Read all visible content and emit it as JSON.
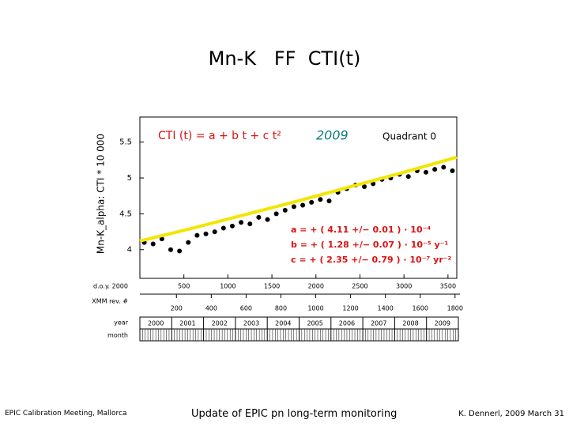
{
  "title": "Mn-K   FF  CTI(t)",
  "footer": {
    "left": "EPIC Calibration Meeting, Mallorca",
    "center": "Update of EPIC pn long-term monitoring",
    "right": "K. Dennerl, 2009 March 31"
  },
  "chart_data": {
    "type": "scatter",
    "y_label": "Mn-K_alpha: CTI * 10 000",
    "x_label": "d.o.y. 2000",
    "x2_label": "XMM rev. #",
    "year_label": "year",
    "month_label": "month",
    "formula": "CTI (t)  =  a + b t + c t²",
    "year_tag": "2009",
    "quadrant": "Quadrant 0",
    "params": [
      "a  =  + ( 4.11 +/−  0.01 ) · 10⁻⁴",
      "b  =  + ( 1.28 +/− 0.07 ) · 10⁻⁵  y⁻¹",
      "c  =  + ( 2.35 +/−  0.79 ) · 10⁻⁷  yr⁻²"
    ],
    "xlim": [
      0,
      3600
    ],
    "ylim": [
      3.6,
      5.85
    ],
    "xticks": [
      500,
      1000,
      1500,
      2000,
      2500,
      3000,
      3500
    ],
    "yticks": [
      4,
      4.5,
      5,
      5.5
    ],
    "x2lim": [
      -10,
      1810
    ],
    "x2ticks": [
      200,
      400,
      600,
      800,
      1000,
      1200,
      1400,
      1600,
      1800
    ],
    "years": [
      "2000",
      "2001",
      "2002",
      "2003",
      "2004",
      "2005",
      "2006",
      "2007",
      "2008",
      "2009"
    ],
    "color": "#000000",
    "x": [
      50,
      150,
      250,
      350,
      450,
      550,
      650,
      750,
      850,
      950,
      1050,
      1150,
      1250,
      1350,
      1450,
      1550,
      1650,
      1750,
      1850,
      1950,
      2050,
      2150,
      2250,
      2350,
      2450,
      2550,
      2650,
      2750,
      2850,
      2950,
      3050,
      3150,
      3250,
      3350,
      3450,
      3550
    ],
    "values": [
      4.1,
      4.08,
      4.15,
      4.0,
      3.98,
      4.1,
      4.2,
      4.22,
      4.25,
      4.3,
      4.33,
      4.38,
      4.36,
      4.45,
      4.42,
      4.5,
      4.55,
      4.6,
      4.62,
      4.66,
      4.7,
      4.68,
      4.8,
      4.85,
      4.9,
      4.88,
      4.92,
      4.98,
      5.0,
      5.05,
      5.02,
      5.1,
      5.08,
      5.12,
      5.15,
      5.1
    ],
    "fit": {
      "color": "#f2e600",
      "x": [
        0,
        600,
        1200,
        1800,
        2400,
        3000,
        3600
      ],
      "values": [
        4.12,
        4.3,
        4.49,
        4.68,
        4.88,
        5.08,
        5.29
      ]
    }
  }
}
